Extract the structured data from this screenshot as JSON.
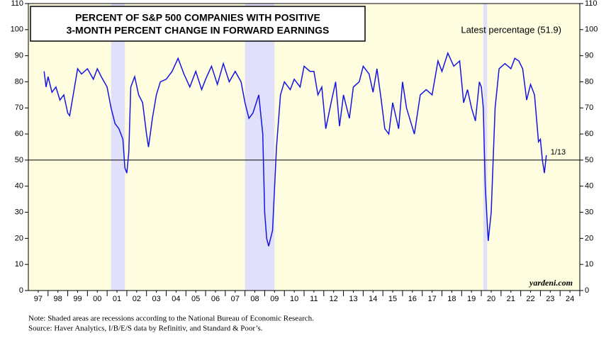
{
  "chart_data": {
    "type": "line",
    "title_lines": [
      "PERCENT OF S&P 500 COMPANIES WITH POSITIVE",
      "3-MONTH PERCENT CHANGE IN FORWARD EARNINGS"
    ],
    "annotation": "Latest percentage (51.9)",
    "latest_label": "1/13",
    "reference_line": 50,
    "source_brand": "yardeni.com",
    "notes": [
      "Note: Shaded areas are recessions according to the National Bureau of Economic Research.",
      "Source: Haver Analytics, I/B/E/S data by Refinitiv, and Standard & Poor’s."
    ],
    "recessions": [
      [
        2001.2,
        2001.9
      ],
      [
        2008.0,
        2009.5
      ],
      [
        2020.1,
        2020.3
      ]
    ],
    "background": "#fffde0",
    "recession_color": "#e0e0fb",
    "xlim": [
      1997,
      2025
    ],
    "ylim": [
      0,
      110
    ],
    "yticks": [
      0,
      10,
      20,
      30,
      40,
      50,
      60,
      70,
      80,
      90,
      100,
      110
    ],
    "xticks": [
      {
        "value": 1997.5,
        "label": "97"
      },
      {
        "value": 1998.5,
        "label": "98"
      },
      {
        "value": 1999.5,
        "label": "99"
      },
      {
        "value": 2000.5,
        "label": "00"
      },
      {
        "value": 2001.5,
        "label": "01"
      },
      {
        "value": 2002.5,
        "label": "02"
      },
      {
        "value": 2003.5,
        "label": "03"
      },
      {
        "value": 2004.5,
        "label": "04"
      },
      {
        "value": 2005.5,
        "label": "05"
      },
      {
        "value": 2006.5,
        "label": "06"
      },
      {
        "value": 2007.5,
        "label": "07"
      },
      {
        "value": 2008.5,
        "label": "08"
      },
      {
        "value": 2009.5,
        "label": "09"
      },
      {
        "value": 2010.5,
        "label": "10"
      },
      {
        "value": 2011.5,
        "label": "11"
      },
      {
        "value": 2012.5,
        "label": "12"
      },
      {
        "value": 2013.5,
        "label": "13"
      },
      {
        "value": 2014.5,
        "label": "14"
      },
      {
        "value": 2015.5,
        "label": "15"
      },
      {
        "value": 2016.5,
        "label": "16"
      },
      {
        "value": 2017.5,
        "label": "17"
      },
      {
        "value": 2018.5,
        "label": "18"
      },
      {
        "value": 2019.5,
        "label": "19"
      },
      {
        "value": 2020.5,
        "label": "20"
      },
      {
        "value": 2021.5,
        "label": "21"
      },
      {
        "value": 2022.5,
        "label": "22"
      },
      {
        "value": 2023.5,
        "label": "23"
      },
      {
        "value": 2024.5,
        "label": "24"
      }
    ],
    "x": [
      1997.8,
      1997.9,
      1998.0,
      1998.2,
      1998.4,
      1998.6,
      1998.8,
      1999.0,
      1999.1,
      1999.3,
      1999.5,
      1999.7,
      2000.0,
      2000.3,
      2000.5,
      2000.7,
      2001.0,
      2001.2,
      2001.4,
      2001.6,
      2001.8,
      2001.9,
      2002.0,
      2002.1,
      2002.2,
      2002.4,
      2002.6,
      2002.8,
      2003.0,
      2003.1,
      2003.3,
      2003.5,
      2003.7,
      2004.0,
      2004.3,
      2004.6,
      2004.9,
      2005.2,
      2005.5,
      2005.8,
      2006.0,
      2006.3,
      2006.6,
      2006.9,
      2007.2,
      2007.5,
      2007.8,
      2008.0,
      2008.2,
      2008.4,
      2008.7,
      2008.9,
      2009.0,
      2009.1,
      2009.2,
      2009.4,
      2009.6,
      2009.8,
      2010.0,
      2010.3,
      2010.5,
      2010.8,
      2011.0,
      2011.3,
      2011.5,
      2011.7,
      2011.9,
      2012.1,
      2012.4,
      2012.6,
      2012.8,
      2013.0,
      2013.3,
      2013.5,
      2013.8,
      2014.0,
      2014.3,
      2014.5,
      2014.7,
      2014.9,
      2015.1,
      2015.3,
      2015.5,
      2015.8,
      2016.0,
      2016.2,
      2016.4,
      2016.6,
      2016.9,
      2017.2,
      2017.5,
      2017.8,
      2018.0,
      2018.3,
      2018.6,
      2018.9,
      2019.1,
      2019.3,
      2019.5,
      2019.7,
      2019.9,
      2020.0,
      2020.1,
      2020.2,
      2020.35,
      2020.5,
      2020.7,
      2020.9,
      2021.2,
      2021.5,
      2021.7,
      2021.9,
      2022.1,
      2022.3,
      2022.5,
      2022.7,
      2022.9,
      2023.0,
      2023.1,
      2023.2,
      2023.3
    ],
    "series": [
      {
        "color": "#1515e0",
        "values": [
          84,
          78,
          82,
          76,
          78,
          73,
          75,
          68,
          67,
          76,
          85,
          83,
          85,
          81,
          85,
          82,
          78,
          70,
          64,
          62,
          58,
          47,
          45,
          53,
          78,
          82,
          75,
          72,
          60,
          55,
          66,
          75,
          80,
          81,
          84,
          89,
          83,
          78,
          84,
          77,
          81,
          86,
          79,
          87,
          80,
          84,
          80,
          72,
          66,
          68,
          75,
          60,
          30,
          20,
          17,
          23,
          55,
          75,
          80,
          77,
          81,
          78,
          86,
          84,
          84,
          75,
          78,
          62,
          73,
          80,
          63,
          75,
          66,
          78,
          80,
          86,
          83,
          76,
          85,
          74,
          62,
          60,
          72,
          62,
          80,
          70,
          65,
          60,
          75,
          77,
          75,
          88,
          84,
          91,
          86,
          88,
          72,
          77,
          70,
          65,
          80,
          78,
          70,
          40,
          19,
          30,
          70,
          85,
          87,
          85,
          89,
          88,
          85,
          73,
          79,
          75,
          57,
          58,
          50,
          45,
          51.9
        ]
      }
    ]
  }
}
